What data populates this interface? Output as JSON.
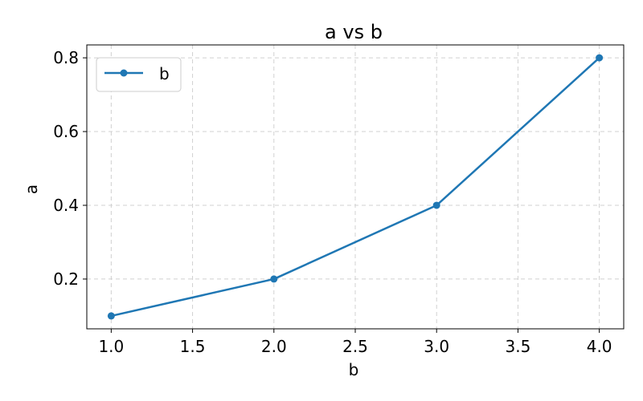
{
  "chart_data": {
    "type": "line",
    "title": "a vs b",
    "xlabel": "b",
    "ylabel": "a",
    "x": [
      1.0,
      2.0,
      3.0,
      4.0
    ],
    "series": [
      {
        "name": "b",
        "values": [
          0.1,
          0.2,
          0.4,
          0.8
        ]
      }
    ],
    "xlim": [
      0.85,
      4.15
    ],
    "ylim": [
      0.065,
      0.835
    ],
    "xticks": [
      "1.0",
      "1.5",
      "2.0",
      "2.5",
      "3.0",
      "3.5",
      "4.0"
    ],
    "xtick_values": [
      1.0,
      1.5,
      2.0,
      2.5,
      3.0,
      3.5,
      4.0
    ],
    "yticks": [
      "0.2",
      "0.4",
      "0.6",
      "0.8"
    ],
    "ytick_values": [
      0.2,
      0.4,
      0.6,
      0.8
    ],
    "grid": true,
    "legend_position": "top-left",
    "colors": {
      "series": "#1f77b4",
      "grid": "#d0d0d0"
    }
  }
}
